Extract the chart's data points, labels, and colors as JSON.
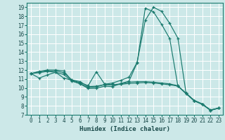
{
  "xlabel": "Humidex (Indice chaleur)",
  "bg_color": "#cce8e8",
  "grid_color": "#dff0f0",
  "line_color": "#1a7a6e",
  "xlim": [
    -0.5,
    23.5
  ],
  "ylim": [
    7,
    19.5
  ],
  "xticks": [
    0,
    1,
    2,
    3,
    4,
    5,
    6,
    7,
    8,
    9,
    10,
    11,
    12,
    13,
    14,
    15,
    16,
    17,
    18,
    19,
    20,
    21,
    22,
    23
  ],
  "yticks": [
    7,
    8,
    9,
    10,
    11,
    12,
    13,
    14,
    15,
    16,
    17,
    18,
    19
  ],
  "lines": [
    {
      "x": [
        0,
        1,
        2,
        3,
        4,
        5,
        6,
        7,
        8,
        9,
        10,
        11,
        12,
        13,
        14,
        15,
        16,
        17,
        18,
        19,
        20,
        21,
        22,
        23
      ],
      "y": [
        11.6,
        11.85,
        12.0,
        12.0,
        11.9,
        10.8,
        10.45,
        9.95,
        9.95,
        10.2,
        10.15,
        10.5,
        10.75,
        12.8,
        18.9,
        18.5,
        17.1,
        15.5,
        10.2,
        9.35,
        8.55,
        8.15,
        7.5,
        7.75
      ]
    },
    {
      "x": [
        0,
        1,
        2,
        3,
        4,
        5,
        6,
        7,
        8,
        9,
        10,
        11,
        12,
        13,
        14,
        15,
        16,
        17,
        18,
        19,
        20,
        21,
        22,
        23
      ],
      "y": [
        11.6,
        11.7,
        11.85,
        11.75,
        11.5,
        10.75,
        10.5,
        10.05,
        10.1,
        10.4,
        10.55,
        10.85,
        11.2,
        12.85,
        17.55,
        19.0,
        18.55,
        17.2,
        15.55,
        9.4,
        8.6,
        8.2,
        7.55,
        7.75
      ]
    },
    {
      "x": [
        0,
        1,
        2,
        3,
        4,
        5,
        6,
        7,
        8,
        9,
        10,
        11,
        12,
        13,
        14,
        15,
        16,
        17,
        18,
        19,
        20,
        21,
        22,
        23
      ],
      "y": [
        11.6,
        11.1,
        11.45,
        11.75,
        11.1,
        10.85,
        10.6,
        10.25,
        11.8,
        10.45,
        10.35,
        10.4,
        10.5,
        10.55,
        10.6,
        10.55,
        10.45,
        10.35,
        10.2,
        9.4,
        8.6,
        8.2,
        7.5,
        7.75
      ]
    },
    {
      "x": [
        0,
        1,
        2,
        3,
        4,
        5,
        6,
        7,
        8,
        9,
        10,
        11,
        12,
        13,
        14,
        15,
        16,
        17,
        18,
        19,
        20,
        21,
        22,
        23
      ],
      "y": [
        11.6,
        11.8,
        11.9,
        11.9,
        11.7,
        10.9,
        10.7,
        10.15,
        10.2,
        10.35,
        10.35,
        10.45,
        10.65,
        10.7,
        10.7,
        10.65,
        10.55,
        10.45,
        10.25,
        9.4,
        8.6,
        8.2,
        7.5,
        7.75
      ]
    }
  ]
}
